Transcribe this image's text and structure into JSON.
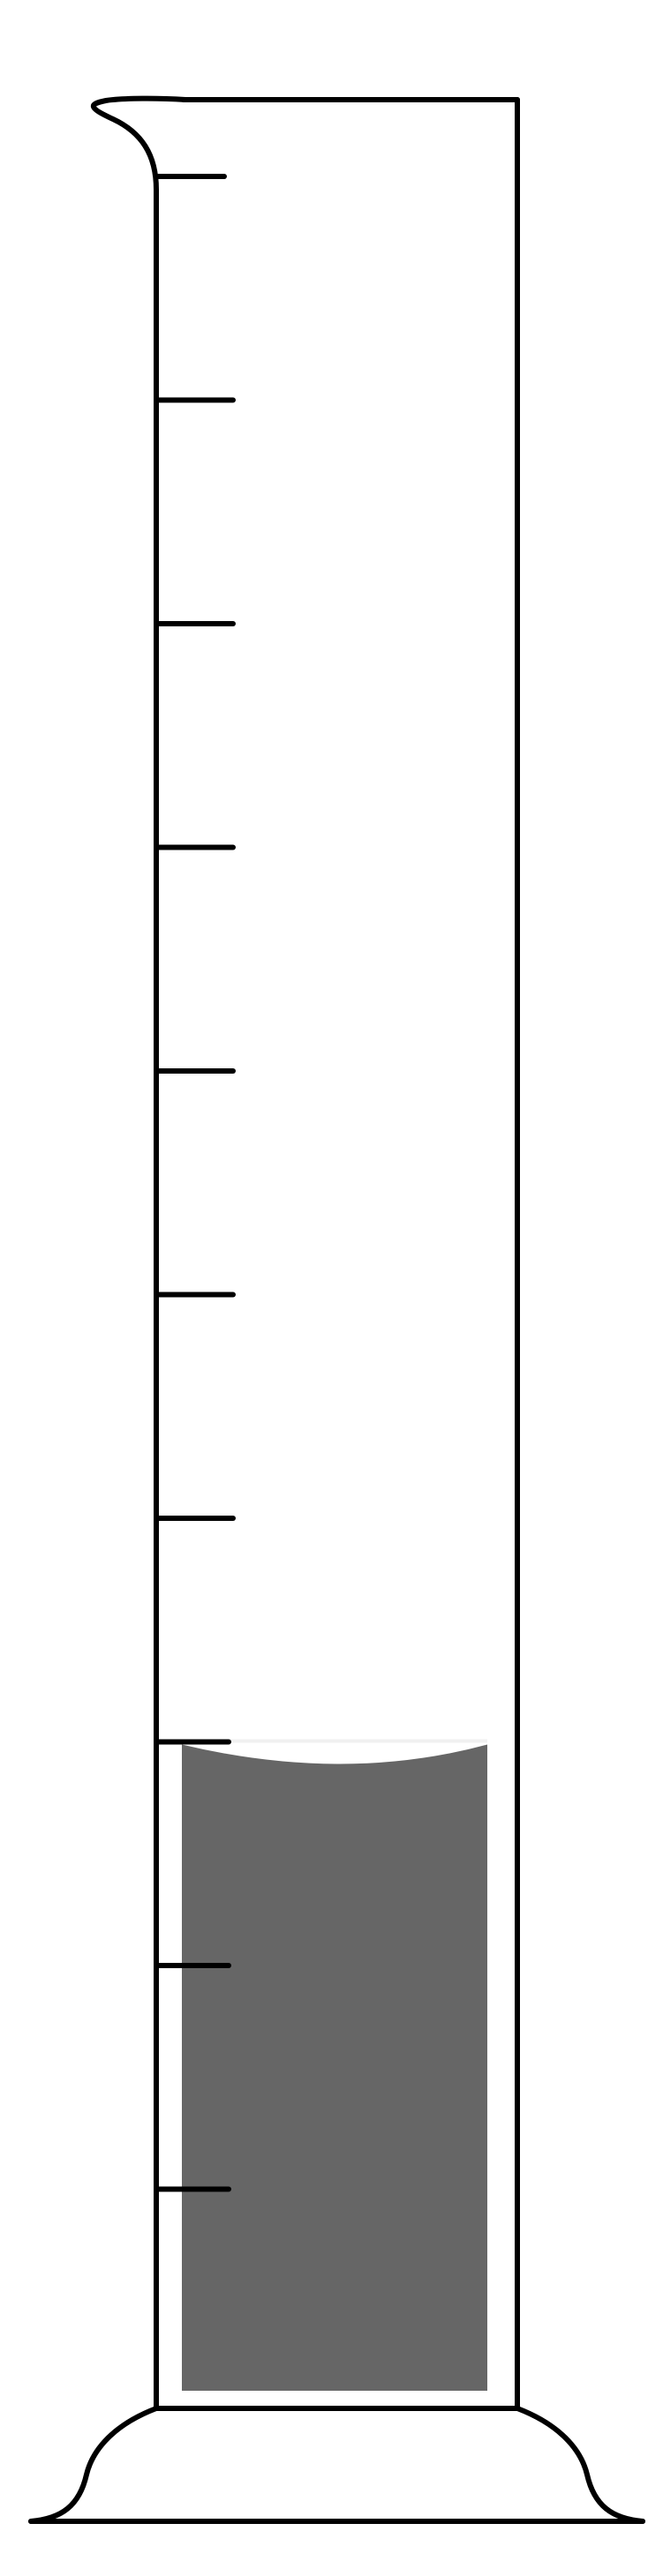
{
  "diagram": {
    "object": "graduated-cylinder",
    "colors": {
      "outline": "#000000",
      "background": "#ffffff",
      "liquid": "#666666"
    },
    "graduation_marks": 10,
    "liquid_level_mark": 8,
    "fill_fraction": 0.3
  }
}
